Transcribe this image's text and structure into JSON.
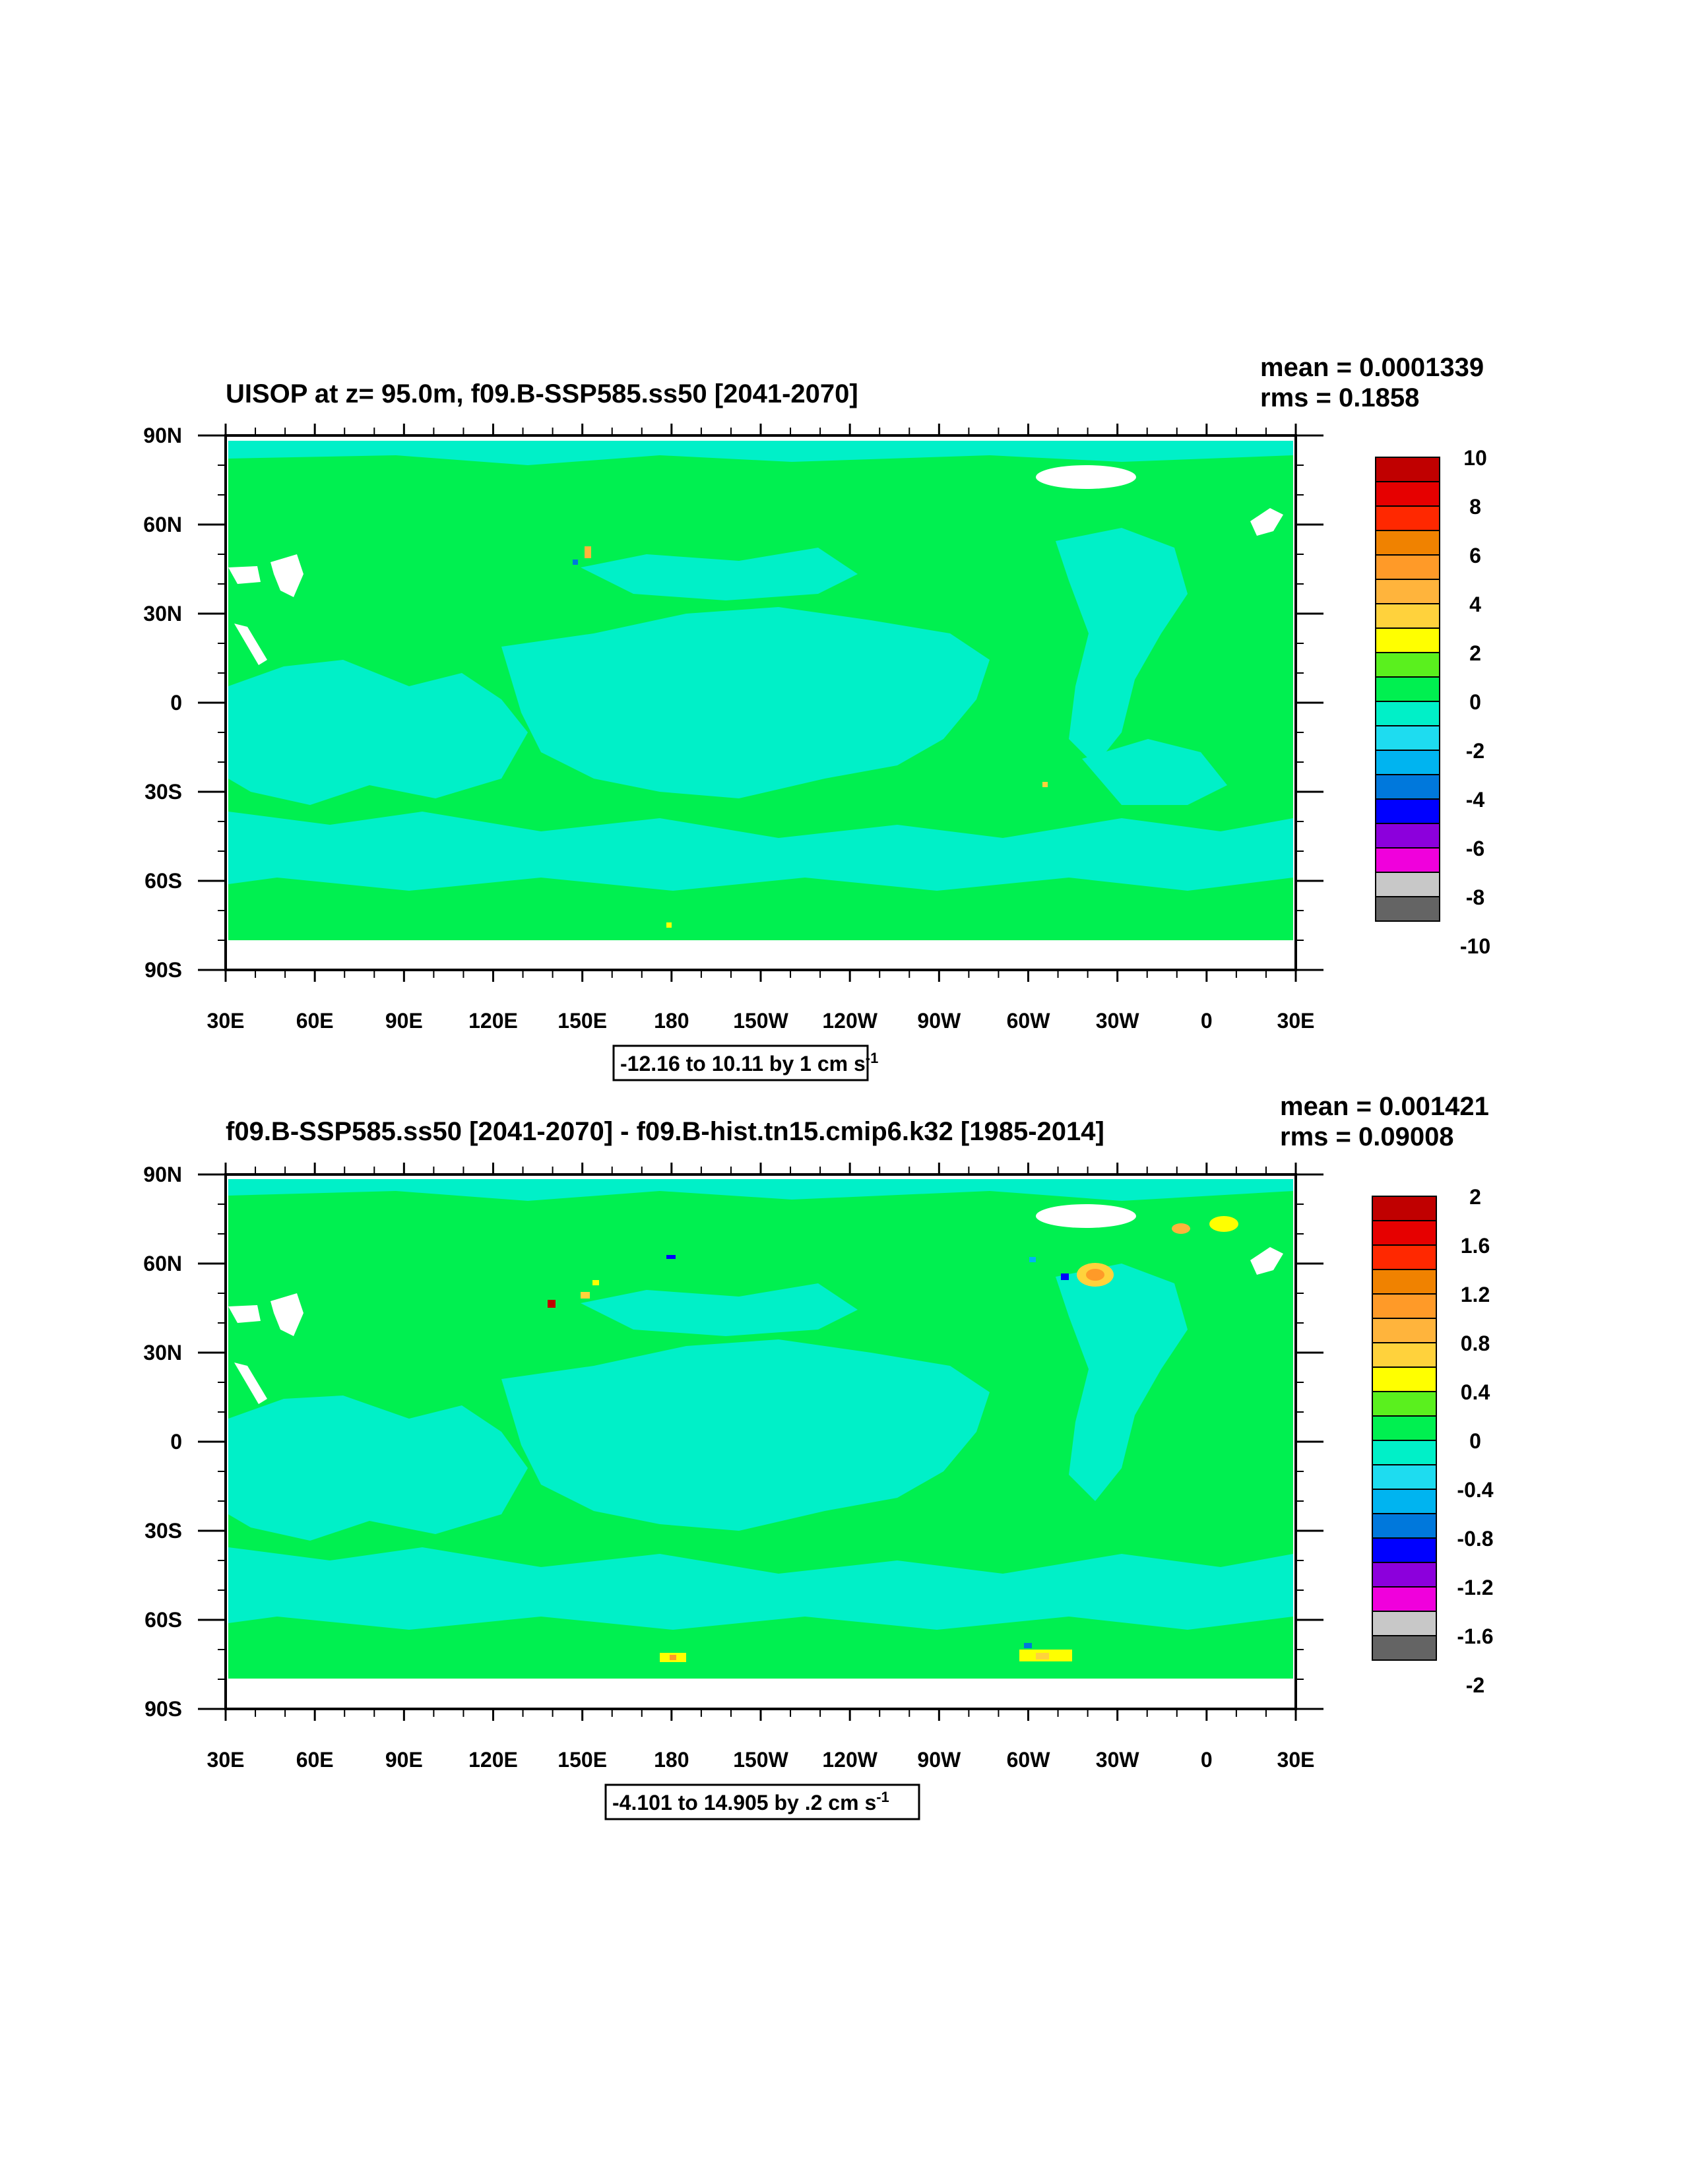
{
  "chart_data": [
    {
      "type": "heatmap",
      "title": "UISOP at z=  95.0m, f09.B-SSP585.ss50 [2041-2070]",
      "stats": {
        "mean": "mean = 0.0001339",
        "rms": "rms = 0.1858"
      },
      "xlabel": "",
      "ylabel": "",
      "x_ticks": [
        "30E",
        "60E",
        "90E",
        "120E",
        "150E",
        "180",
        "150W",
        "120W",
        "90W",
        "60W",
        "30W",
        "0",
        "30E"
      ],
      "y_ticks": [
        "90N",
        "60N",
        "30N",
        "0",
        "30S",
        "60S",
        "90S"
      ],
      "xlim": [
        30,
        390
      ],
      "ylim": [
        -90,
        90
      ],
      "contour_info": {
        "text": "-12.16 to 10.11 by 1 cm s",
        "sup": "-1"
      },
      "colorbar": {
        "levels": [
          "10",
          "8",
          "6",
          "4",
          "2",
          "0",
          "-2",
          "-4",
          "-6",
          "-8",
          "-10"
        ],
        "colors": [
          "#c00000",
          "#e60000",
          "#ff2800",
          "#f08200",
          "#ff9a28",
          "#ffb43c",
          "#ffd23c",
          "#ffff00",
          "#5af01e",
          "#00f050",
          "#00f0c8",
          "#1edcf0",
          "#00b4f0",
          "#0078dc",
          "#0000ff",
          "#8c00dc",
          "#f000dc",
          "#c8c8c8",
          "#646464"
        ]
      },
      "field_colors": {
        "ocean_main": "#00f050",
        "ocean_low": "#00f0c8",
        "land": "#ffffff"
      }
    },
    {
      "type": "heatmap",
      "title": "f09.B-SSP585.ss50 [2041-2070] - f09.B-hist.tn15.cmip6.k32 [1985-2014]",
      "stats": {
        "mean": "mean = 0.001421",
        "rms": "rms = 0.09008"
      },
      "xlabel": "",
      "ylabel": "",
      "x_ticks": [
        "30E",
        "60E",
        "90E",
        "120E",
        "150E",
        "180",
        "150W",
        "120W",
        "90W",
        "60W",
        "30W",
        "0",
        "30E"
      ],
      "y_ticks": [
        "90N",
        "60N",
        "30N",
        "0",
        "30S",
        "60S",
        "90S"
      ],
      "xlim": [
        30,
        390
      ],
      "ylim": [
        -90,
        90
      ],
      "contour_info": {
        "text": "-4.101 to 14.905 by .2 cm s",
        "sup": "-1"
      },
      "colorbar": {
        "levels": [
          "2",
          "1.6",
          "1.2",
          "0.8",
          "0.4",
          "0",
          "-0.4",
          "-0.8",
          "-1.2",
          "-1.6",
          "-2"
        ],
        "colors": [
          "#c00000",
          "#e60000",
          "#ff2800",
          "#f08200",
          "#ff9a28",
          "#ffb43c",
          "#ffd23c",
          "#ffff00",
          "#5af01e",
          "#00f050",
          "#00f0c8",
          "#1edcf0",
          "#00b4f0",
          "#0078dc",
          "#0000ff",
          "#8c00dc",
          "#f000dc",
          "#c8c8c8",
          "#646464"
        ]
      },
      "field_colors": {
        "ocean_main": "#00f050",
        "ocean_low": "#00f0c8",
        "land": "#ffffff"
      }
    }
  ]
}
